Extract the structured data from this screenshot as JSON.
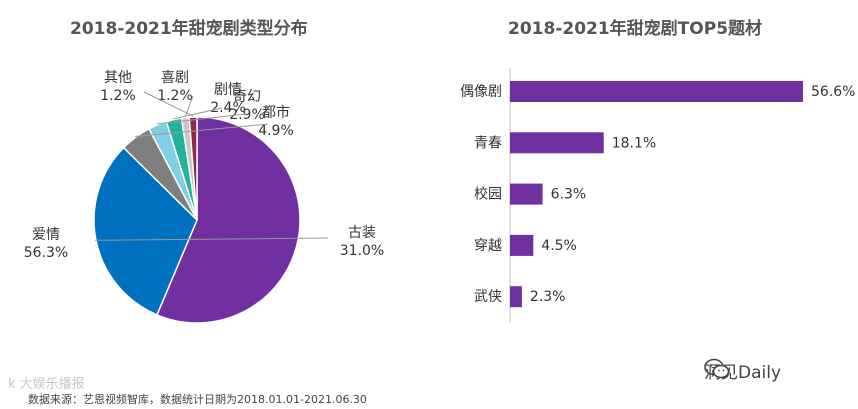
{
  "chart_data": [
    {
      "type": "pie",
      "title": "2018-2021年甜宠剧类型分布",
      "slices": [
        {
          "label": "爱情",
          "value": 56.3,
          "display": "56.3%",
          "color": "#7030a0"
        },
        {
          "label": "古装",
          "value": 31.0,
          "display": "31.0%",
          "color": "#0070c0"
        },
        {
          "label": "都市",
          "value": 4.9,
          "display": "4.9%",
          "color": "#7f7f7f"
        },
        {
          "label": "奇幻",
          "value": 2.9,
          "display": "2.9%",
          "color": "#7ecfe6"
        },
        {
          "label": "剧情",
          "value": 2.4,
          "display": "2.4%",
          "color": "#22b39a"
        },
        {
          "label": "喜剧",
          "value": 1.2,
          "display": "1.2%",
          "color": "#c9c9c9"
        },
        {
          "label": "其他",
          "value": 1.2,
          "display": "1.2%",
          "color": "#8b2a4d"
        }
      ]
    },
    {
      "type": "bar",
      "orientation": "horizontal",
      "title": "2018-2021年甜宠剧TOP5题材",
      "categories": [
        "偶像剧",
        "青春",
        "校园",
        "穿越",
        "武侠"
      ],
      "values": [
        56.6,
        18.1,
        6.3,
        4.5,
        2.3
      ],
      "value_labels": [
        "56.6%",
        "18.1%",
        "6.3%",
        "4.5%",
        "2.3%"
      ],
      "xlim": [
        0,
        60
      ],
      "color": "#7030a0",
      "grid": false
    }
  ],
  "footer": {
    "source": "数据来源：艺恩视频智库，数据统计日期为2018.01.01-2021.06.30",
    "watermark": "k 大娱乐播报"
  },
  "brand": {
    "name": "洞见Daily",
    "icon": "wechat-icon"
  }
}
